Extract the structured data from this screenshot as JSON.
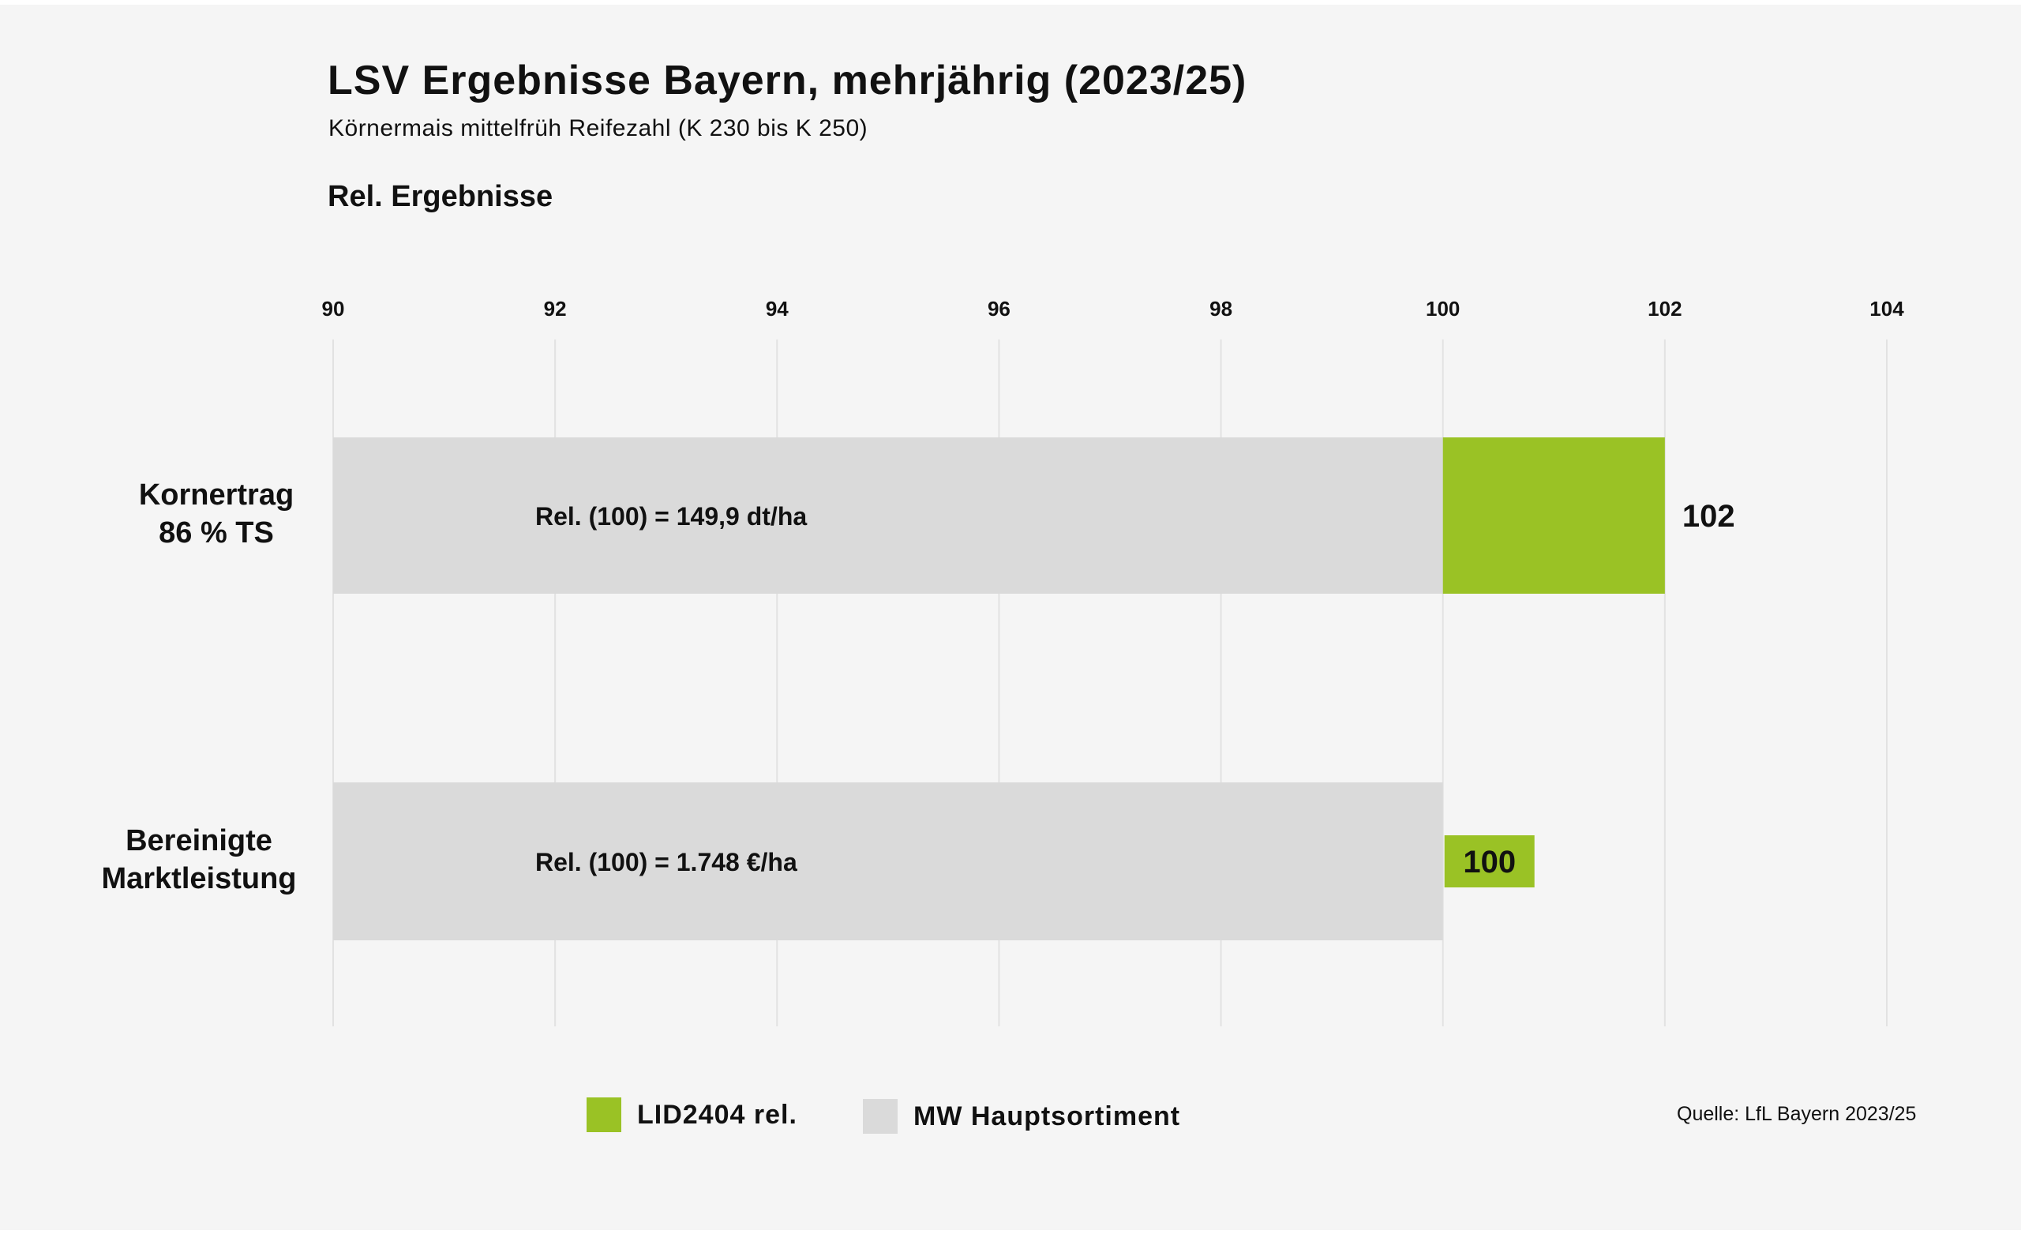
{
  "title": "LSV Ergebnisse Bayern, mehrjährig (2023/25)",
  "subtitle": "Körnermais mittelfrüh Reifezahl (K 230 bis K 250)",
  "section_title": "Rel. Ergebnisse",
  "legend": [
    {
      "label": "LID2404 rel.",
      "color": "#9ac225"
    },
    {
      "label": "MW Hauptsortiment",
      "color": "#dadada"
    }
  ],
  "source": "Quelle: LfL Bayern 2023/25",
  "chart_data": {
    "type": "bar",
    "orientation": "horizontal",
    "categories": [
      [
        "Kornertrag",
        "86 % TS"
      ],
      [
        "Bereinigte",
        "Marktleistung"
      ]
    ],
    "series": [
      {
        "name": "MW Hauptsortiment",
        "values": [
          100,
          100
        ],
        "color": "#dadada"
      },
      {
        "name": "LID2404 rel.",
        "values": [
          102,
          100
        ],
        "color": "#9ac225"
      }
    ],
    "bar_labels": [
      "Rel. (100) = 149,9 dt/ha",
      "Rel. (100) = 1.748 €/ha"
    ],
    "value_labels": [
      "102",
      "100"
    ],
    "xlim": [
      90,
      104
    ],
    "xticks": [
      90,
      92,
      94,
      96,
      98,
      100,
      102,
      104
    ],
    "grid": true,
    "legend_position": "bottom"
  }
}
